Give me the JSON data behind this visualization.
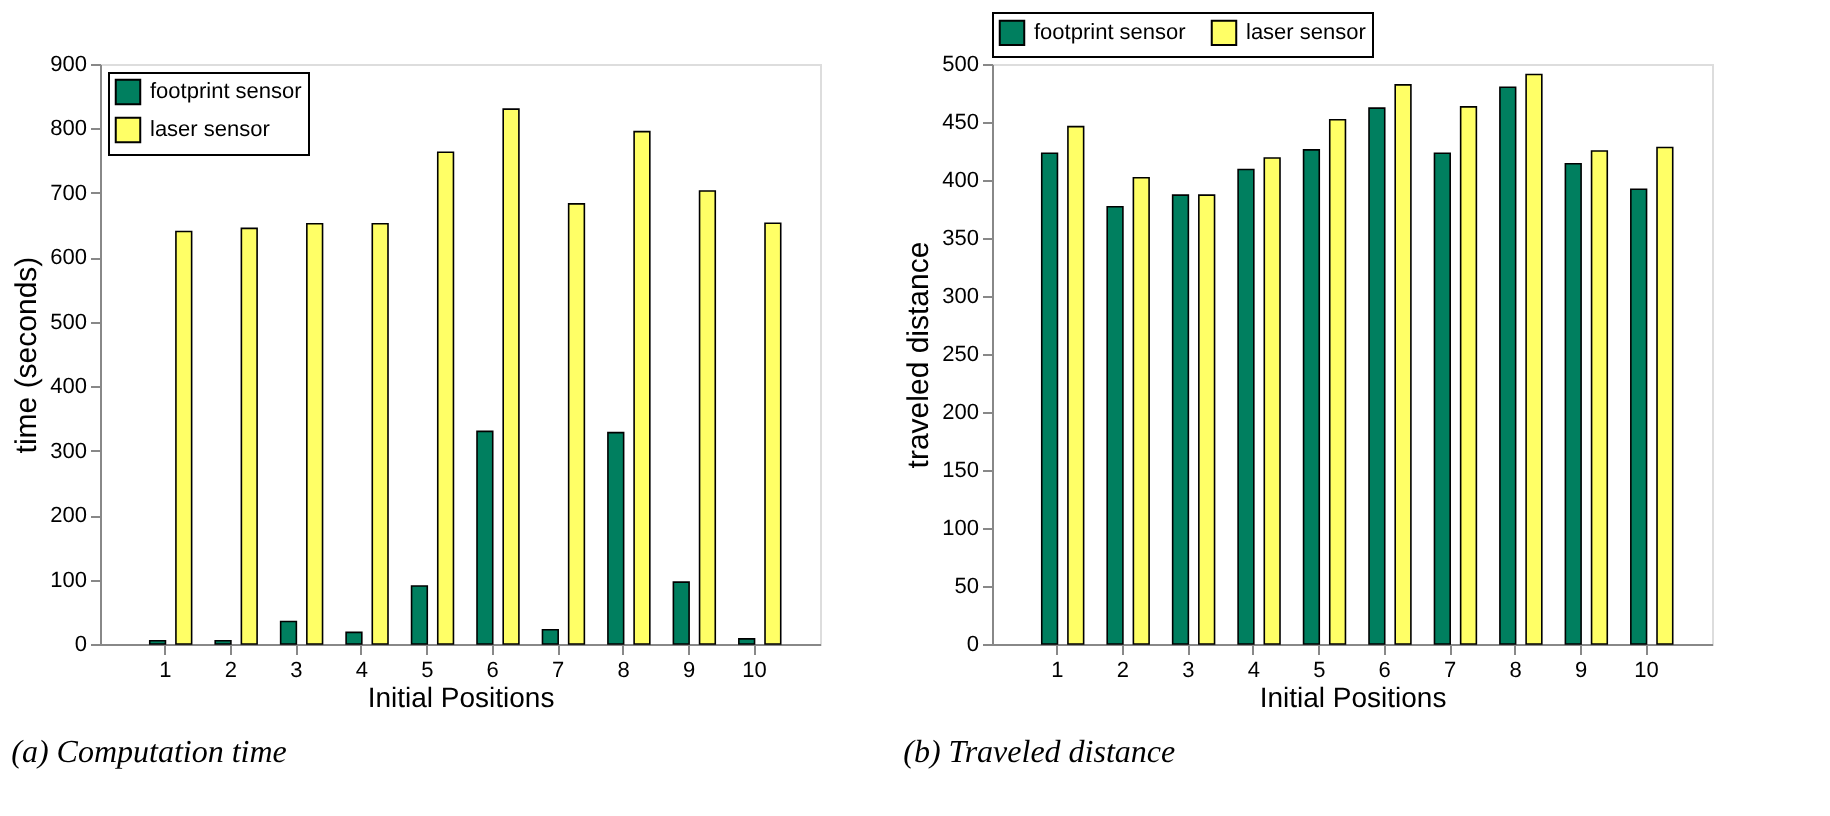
{
  "chart_data": [
    {
      "type": "bar",
      "title": "(a) Computation time",
      "xlabel": "Initial Positions",
      "ylabel": "time (seconds)",
      "categories": [
        "1",
        "2",
        "3",
        "4",
        "5",
        "6",
        "7",
        "8",
        "9",
        "10"
      ],
      "series": [
        {
          "name": "footprint sensor",
          "color": "#007f5f",
          "values": [
            5,
            5,
            35,
            18,
            90,
            330,
            22,
            328,
            96,
            8
          ]
        },
        {
          "name": "laser sensor",
          "color": "#ffff66",
          "values": [
            640,
            645,
            652,
            652,
            763,
            830,
            683,
            795,
            703,
            653
          ]
        }
      ],
      "ylim": [
        0,
        900
      ],
      "yticks": [
        0,
        100,
        200,
        300,
        400,
        500,
        600,
        700,
        800,
        900
      ],
      "grid": false,
      "legend": "top left"
    },
    {
      "type": "bar",
      "title": "(b) Traveled distance",
      "xlabel": "Initial Positions",
      "ylabel": "traveled distance",
      "categories": [
        "1",
        "2",
        "3",
        "4",
        "5",
        "6",
        "7",
        "8",
        "9",
        "10"
      ],
      "series": [
        {
          "name": "footprint sensor",
          "color": "#007f5f",
          "values": [
            423,
            377,
            387,
            409,
            426,
            462,
            423,
            480,
            414,
            392
          ]
        },
        {
          "name": "laser sensor",
          "color": "#ffff66",
          "values": [
            446,
            402,
            387,
            419,
            452,
            482,
            463,
            491,
            425,
            428
          ]
        }
      ],
      "ylim": [
        0,
        500
      ],
      "yticks": [
        0,
        50,
        100,
        150,
        200,
        250,
        300,
        350,
        400,
        450,
        500
      ],
      "grid": false,
      "legend": "top"
    }
  ]
}
